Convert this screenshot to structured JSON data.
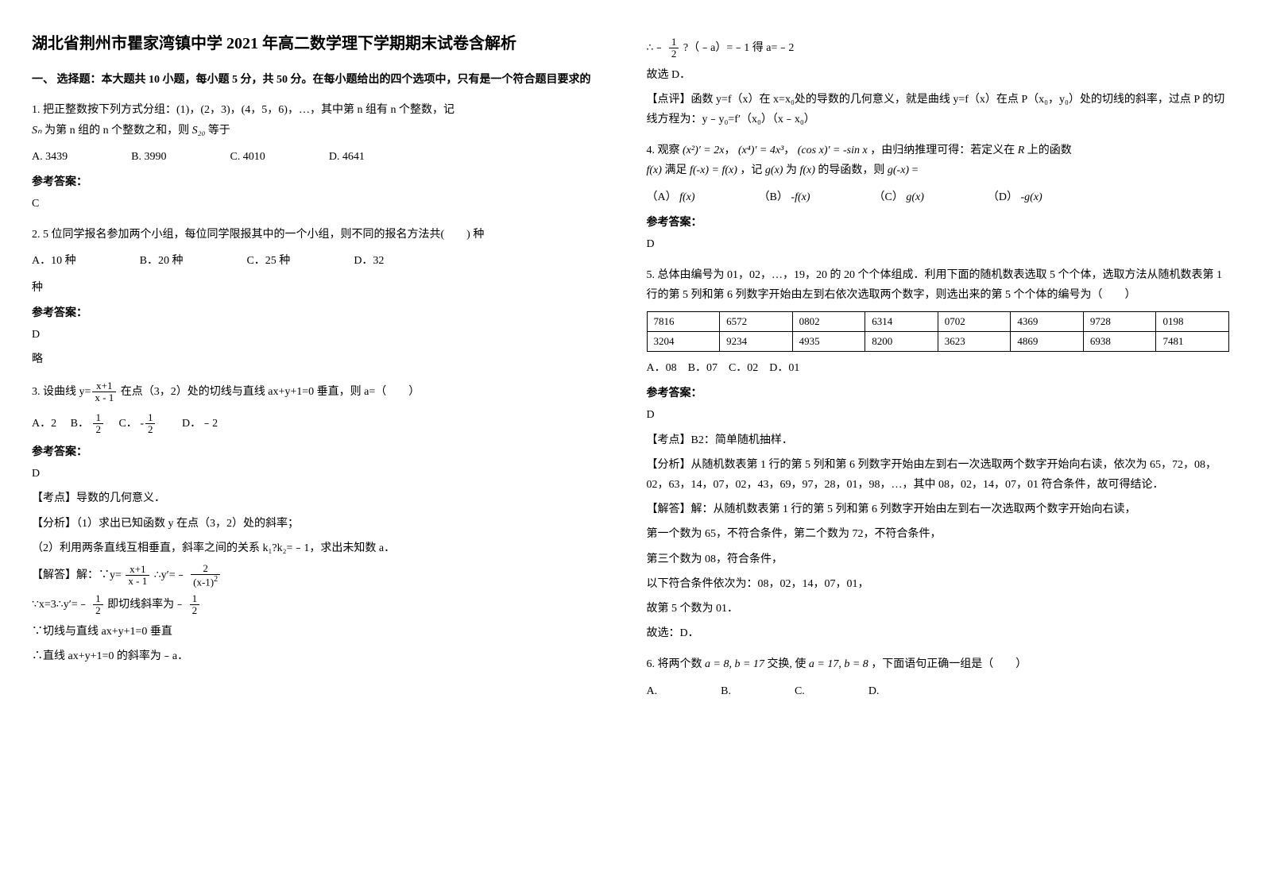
{
  "title": "湖北省荆州市瞿家湾镇中学 2021 年高二数学理下学期期末试卷含解析",
  "section1_header": "一、 选择题：本大题共 10 小题，每小题 5 分，共 50 分。在每小题给出的四个选项中，只有是一个符合题目要求的",
  "q1": {
    "text": "1. 把正整数按下列方式分组：(1)，(2，3)，(4，5，6)，…，其中第 n 组有 n 个整数，记",
    "text2": " 为第 n 组的 n 个整数之和，则",
    "text3": " 等于",
    "optA": "A. 3439",
    "optB": "B. 3990",
    "optC": "C. 4010",
    "optD": "D. 4641",
    "answer_label": "参考答案：",
    "answer": "C"
  },
  "q2": {
    "text": "2. 5 位同学报名参加两个小组，每位同学限报其中的一个小组，则不同的报名方法共(　　) 种",
    "optA": "A．10 种",
    "optB": "B．20 种",
    "optC": "C．25 种",
    "optD": "D．32",
    "optD_tail": "种",
    "answer_label": "参考答案：",
    "answer": "D",
    "answer_note": "略"
  },
  "q3": {
    "text_pre": "3. 设曲线",
    "text_post": "在点（3，2）处的切线与直线 ax+y+1=0 垂直，则 a=（　　）",
    "optA": "A．2",
    "optB_pre": "B．",
    "optC_pre": "C．",
    "optD": "D．﹣2",
    "answer_label": "参考答案：",
    "answer": "D",
    "exp1": "【考点】导数的几何意义．",
    "exp2": "【分析】（1）求出已知函数 y 在点（3，2）处的斜率；",
    "exp3": "（2）利用两条直线互相垂直，斜率之间的关系 k₁?k₂=﹣1，求出未知数 a．",
    "sol1_pre": "【解答】解：∵y=",
    "sol1_mid": "∴y′=﹣",
    "sol2_pre": "∵x=3∴y′=﹣",
    "sol2_mid": "即切线斜率为﹣",
    "sol3": "∵切线与直线 ax+y+1=0 垂直",
    "sol4": "∴直线 ax+y+1=0 的斜率为﹣a．",
    "sol5_pre": "∴﹣",
    "sol5_post": "?（﹣a）=﹣1 得 a=﹣2",
    "sol6": "故选 D．",
    "note1": "【点评】函数 y=f（x）在 x=x₀处的导数的几何意义，就是曲线 y=f（x）在点 P（x₀，y₀）处的切线的斜率，过点 P 的切线方程为：y﹣y₀=f′（x₀）（x﹣x₀）"
  },
  "q4": {
    "text_pre": "4. 观察",
    "text_mid": "，由归纳推理可得：若定义在",
    "text_mid2": "上的函数",
    "text2_pre": "满足",
    "text2_mid": "，记",
    "text2_mid2": "为",
    "text2_mid3": "的导函数，则",
    "text2_post": "=",
    "optA_pre": "（A）",
    "optB_pre": "（B）",
    "optC_pre": "（C）",
    "optD_pre": "（D）",
    "answer_label": "参考答案：",
    "answer": "D"
  },
  "q5": {
    "text": "5. 总体由编号为 01，02，…，19，20 的 20 个个体组成．利用下面的随机数表选取 5 个个体，选取方法从随机数表第 1 行的第 5 列和第 6 列数字开始由左到右依次选取两个数字，则选出来的第 5 个个体的编号为（　　）",
    "table": {
      "rows": [
        [
          "7816",
          "6572",
          "0802",
          "6314",
          "0702",
          "4369",
          "9728",
          "0198"
        ],
        [
          "3204",
          "9234",
          "4935",
          "8200",
          "3623",
          "4869",
          "6938",
          "7481"
        ]
      ]
    },
    "options_line": "A．08　B．07　C．02　D．01",
    "answer_label": "参考答案：",
    "answer": "D",
    "exp1": "【考点】B2：简单随机抽样．",
    "exp2": "【分析】从随机数表第 1 行的第 5 列和第 6 列数字开始由左到右一次选取两个数字开始向右读，依次为 65，72，08，02，63，14，07，02，43，69，97，28，01，98，…，其中 08，02，14，07，01 符合条件，故可得结论．",
    "sol1": "【解答】解：从随机数表第 1 行的第 5 列和第 6 列数字开始由左到右一次选取两个数字开始向右读，",
    "sol2": "第一个数为 65，不符合条件，第二个数为 72，不符合条件，",
    "sol3": "第三个数为 08，符合条件，",
    "sol4": "以下符合条件依次为：08，02，14，07，01，",
    "sol5": "故第 5 个数为 01．",
    "sol6": "故选：D．"
  },
  "q6": {
    "text_pre": "6. 将两个数",
    "text_mid": "交换, 使",
    "text_post": "，下面语句正确一组是（　　）",
    "optA": "A.",
    "optB": "B.",
    "optC": "C.",
    "optD": "D."
  },
  "frac": {
    "half_num": "1",
    "half_den": "2",
    "neg_half_num": "1",
    "neg_half_den": "2",
    "xplus1": "x+1",
    "xminus1": "x - 1",
    "two": "2",
    "xm1sq": "(x-1)"
  },
  "math": {
    "Sn": "Sₙ",
    "S20": "S₂₀",
    "x2_2x": "(x²)′ = 2x",
    "x4_4x3": "(x⁴)′ = 4x³",
    "cosx": "(cos x)′ = -sin x",
    "R": "R",
    "fx": "f(x)",
    "fmx_eq_fx": "f(-x) = f(x)",
    "gx": "g(x)",
    "gmx": "g(-x)",
    "neg_fx": "-f(x)",
    "neg_gx": "-g(x)",
    "ab1": "a = 8, b = 17",
    "ab2": "a = 17, b = 8"
  }
}
